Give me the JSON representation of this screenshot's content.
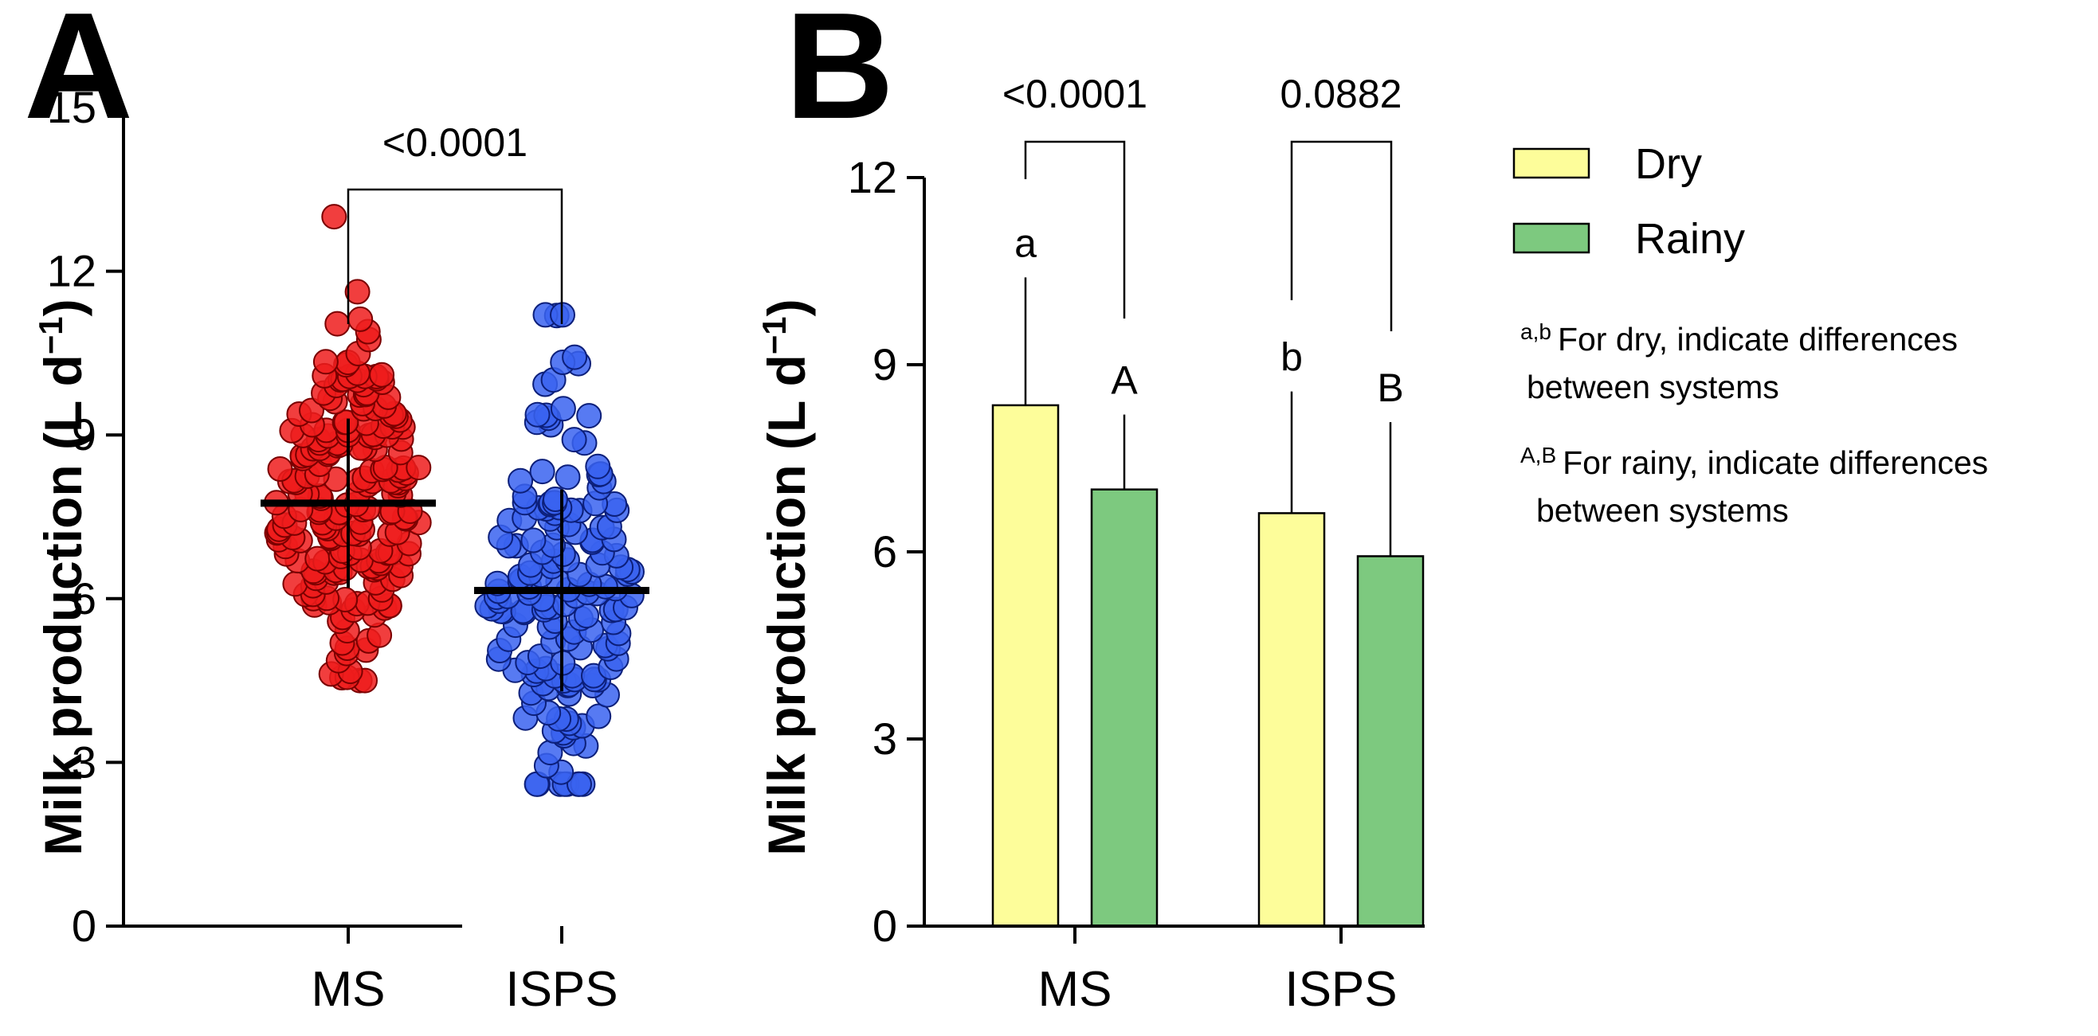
{
  "chart_data": [
    {
      "panel": "A",
      "type": "scatter",
      "ylabel": "Milk production (L d",
      "ylabel_sup": "−1",
      "ylabel_close": ")",
      "ylim": [
        0,
        15
      ],
      "yticks": [
        0,
        3,
        6,
        9,
        12,
        15
      ],
      "categories": [
        "MS",
        "ISPS"
      ],
      "comparison_p": "<0.0001",
      "series": [
        {
          "name": "MS",
          "color": "#ee1c1c",
          "edge": "#7a0000",
          "mean": 7.75,
          "sd": 1.55,
          "min": 4.5,
          "max": 13.0,
          "n": 210
        },
        {
          "name": "ISPS",
          "color": "#3a63f0",
          "edge": "#0c1f7a",
          "mean": 6.15,
          "sd": 1.85,
          "min": 2.6,
          "max": 11.2,
          "n": 170
        }
      ]
    },
    {
      "panel": "B",
      "type": "bar",
      "ylabel": "Milk production (L d",
      "ylabel_sup": "−1",
      "ylabel_close": ")",
      "ylim": [
        0,
        12
      ],
      "yticks": [
        0,
        3,
        6,
        9,
        12
      ],
      "categories": [
        "MS",
        "ISPS"
      ],
      "series": [
        {
          "name": "Dry",
          "color": "#fdfd9a",
          "values": [
            8.35,
            6.62
          ],
          "errors": [
            2.05,
            1.95
          ],
          "letters": [
            "a",
            "b"
          ]
        },
        {
          "name": "Rainy",
          "color": "#7dc97f",
          "values": [
            7.0,
            5.93
          ],
          "errors": [
            1.2,
            2.15
          ],
          "letters": [
            "A",
            "B"
          ]
        }
      ],
      "comparison_p": [
        "<0.0001",
        "0.0882"
      ],
      "legend": [
        "Dry",
        "Rainy"
      ],
      "notes": [
        {
          "sup": "a,b",
          "line1": "For dry, indicate differences",
          "line2": "between systems"
        },
        {
          "sup": "A,B",
          "line1": "For rainy, indicate differences",
          "line2": "between systems"
        }
      ]
    }
  ]
}
